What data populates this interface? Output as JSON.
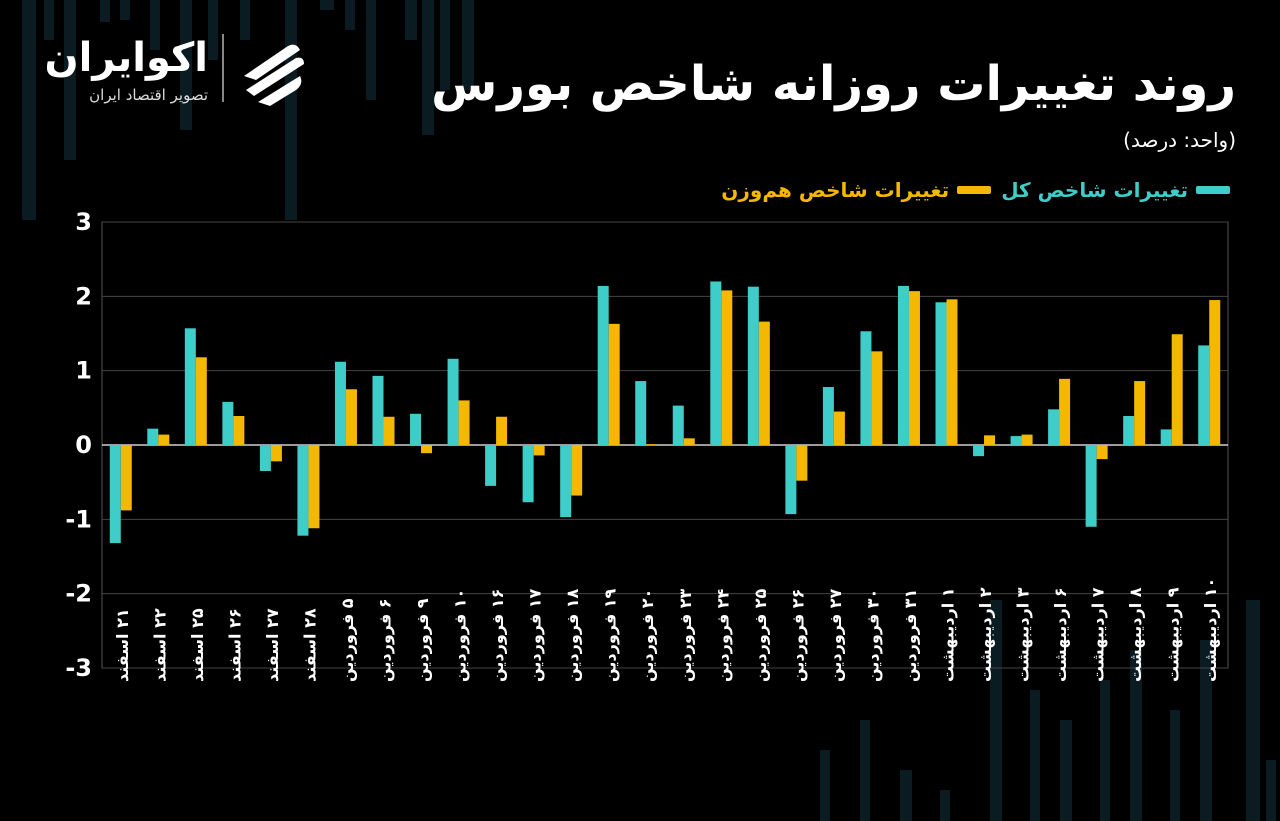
{
  "brand": {
    "name": "اکوایران",
    "tagline": "تصویر اقتصاد ایران"
  },
  "colors": {
    "background": "#000000",
    "total_index": "#3ecdc8",
    "equal_weight_index": "#f5b800",
    "grid": "#3a3a3a",
    "text": "#ffffff"
  },
  "chart_data": {
    "type": "bar",
    "title": "روند تغییرات روزانه شاخص بورس",
    "unit_label": "(واحد: درصد)",
    "ylim": [
      -3,
      3
    ],
    "yticks": [
      "3",
      "2",
      "1",
      "0",
      "-1",
      "-2",
      "-3"
    ],
    "ytick_values": [
      3,
      2,
      1,
      0,
      -1,
      -2,
      -3
    ],
    "legend_position": "top-right",
    "grid": true,
    "categories": [
      "۲۱ اسفند",
      "۲۲ اسفند",
      "۲۵ اسفند",
      "۲۶ اسفند",
      "۲۷ اسفند",
      "۲۸ اسفند",
      "۵ فروردین",
      "۶ فروردین",
      "۹ فروردین",
      "۱۰ فروردین",
      "۱۶ فروردین",
      "۱۷ فروردین",
      "۱۸ فروردین",
      "۱۹ فروردین",
      "۲۰ فروردین",
      "۲۳ فروردین",
      "۲۴ فروردین",
      "۲۵ فروردین",
      "۲۶ فروردین",
      "۲۷ فروردین",
      "۳۰ فروردین",
      "۳۱ فروردین",
      "۱ اردیبهشت",
      "۲ اردیبهشت",
      "۳ اردیبهشت",
      "۶ اردیبهشت",
      "۷ اردیبهشت",
      "۸ اردیبهشت",
      "۹ اردیبهشت",
      "۱۰ اردیبهشت"
    ],
    "series": [
      {
        "name": "تغییرات شاخص کل",
        "values": [
          -1.32,
          0.22,
          1.57,
          0.58,
          -0.35,
          -1.22,
          1.12,
          0.93,
          0.42,
          1.16,
          -0.55,
          -0.77,
          -0.97,
          2.14,
          0.86,
          0.53,
          2.2,
          2.13,
          -0.93,
          0.78,
          1.53,
          2.14,
          1.92,
          -0.15,
          0.12,
          0.48,
          -1.1,
          0.39,
          0.21,
          1.34
        ]
      },
      {
        "name": "تغییرات شاخص هم‌وزن",
        "values": [
          -0.88,
          0.14,
          1.18,
          0.39,
          -0.22,
          -1.12,
          0.75,
          0.38,
          -0.11,
          0.6,
          0.38,
          -0.14,
          -0.68,
          1.63,
          0.01,
          0.09,
          2.08,
          1.66,
          -0.48,
          0.45,
          1.26,
          2.07,
          1.96,
          0.13,
          0.14,
          0.89,
          -0.19,
          0.86,
          1.49,
          1.95
        ]
      }
    ]
  }
}
